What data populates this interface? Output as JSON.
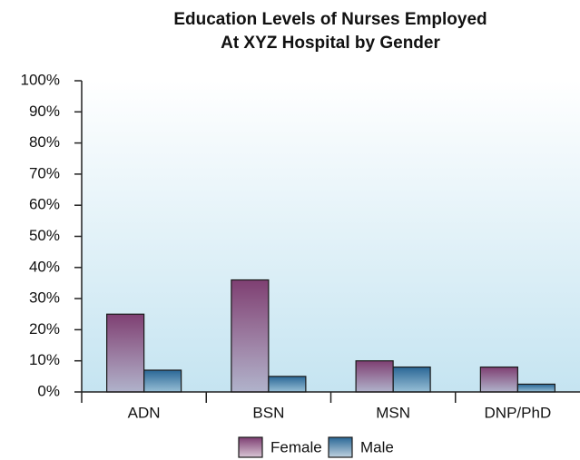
{
  "chart_data": {
    "type": "bar",
    "title": [
      "Education Levels of Nurses Employed",
      "At XYZ Hospital by Gender"
    ],
    "categories": [
      "ADN",
      "BSN",
      "MSN",
      "DNP/PhD"
    ],
    "series": [
      {
        "name": "Female",
        "color": "#7e3f72",
        "values": [
          25,
          36,
          10,
          8
        ]
      },
      {
        "name": "Male",
        "color": "#2a6796",
        "values": [
          7,
          5,
          8,
          2.5
        ]
      }
    ],
    "ylim": [
      0,
      100
    ],
    "yticks": [
      {
        "value": 0,
        "label": "0%"
      },
      {
        "value": 10,
        "label": "10%"
      },
      {
        "value": 20,
        "label": "20%"
      },
      {
        "value": 30,
        "label": "30%"
      },
      {
        "value": 40,
        "label": "40%"
      },
      {
        "value": 50,
        "label": "50%"
      },
      {
        "value": 60,
        "label": "60%"
      },
      {
        "value": 70,
        "label": "70%"
      },
      {
        "value": 80,
        "label": "80%"
      },
      {
        "value": 90,
        "label": "90%"
      },
      {
        "value": 100,
        "label": "100%"
      }
    ],
    "legend": "bottom"
  }
}
